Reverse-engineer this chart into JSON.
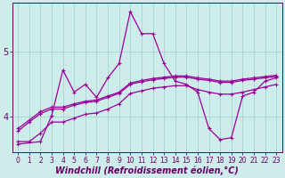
{
  "xlabel": "Windchill (Refroidissement éolien,°C)",
  "bg_color": "#ceecea",
  "line_color": "#990099",
  "grid_color": "#aad8d5",
  "axis_color": "#660066",
  "text_color": "#660066",
  "xlim": [
    -0.5,
    23.5
  ],
  "ylim": [
    3.45,
    5.75
  ],
  "yticks": [
    4,
    5
  ],
  "xticks": [
    0,
    1,
    2,
    3,
    4,
    5,
    6,
    7,
    8,
    9,
    10,
    11,
    12,
    13,
    14,
    15,
    16,
    17,
    18,
    19,
    20,
    21,
    22,
    23
  ],
  "line1_x": [
    0,
    1,
    2,
    3,
    4,
    5,
    6,
    7,
    8,
    9,
    10,
    11,
    12,
    13,
    14,
    15,
    16,
    17,
    18,
    19,
    20,
    21,
    22,
    23
  ],
  "line1_y": [
    3.78,
    3.92,
    4.05,
    4.12,
    4.12,
    4.18,
    4.22,
    4.24,
    4.3,
    4.36,
    4.5,
    4.54,
    4.57,
    4.59,
    4.61,
    4.61,
    4.58,
    4.56,
    4.53,
    4.53,
    4.56,
    4.58,
    4.6,
    4.62
  ],
  "line2_x": [
    0,
    1,
    2,
    3,
    4,
    5,
    6,
    7,
    8,
    9,
    10,
    11,
    12,
    13,
    14,
    15,
    16,
    17,
    18,
    19,
    20,
    21,
    22,
    23
  ],
  "line2_y": [
    3.82,
    3.95,
    4.08,
    4.15,
    4.15,
    4.2,
    4.24,
    4.26,
    4.32,
    4.38,
    4.52,
    4.56,
    4.59,
    4.61,
    4.63,
    4.63,
    4.6,
    4.58,
    4.55,
    4.55,
    4.58,
    4.6,
    4.62,
    4.64
  ],
  "line3_x": [
    0,
    1,
    2,
    3,
    4,
    5,
    6,
    7,
    8,
    9,
    10,
    11,
    12,
    13,
    14,
    15,
    16,
    17,
    18,
    19,
    20,
    21,
    22,
    23
  ],
  "line3_y": [
    3.62,
    3.62,
    3.75,
    3.92,
    3.92,
    3.98,
    4.04,
    4.06,
    4.12,
    4.2,
    4.36,
    4.4,
    4.44,
    4.46,
    4.48,
    4.48,
    4.42,
    4.38,
    4.35,
    4.35,
    4.38,
    4.42,
    4.46,
    4.5
  ],
  "line4_x": [
    0,
    2,
    3,
    4,
    5,
    6,
    7,
    8,
    9,
    10,
    11,
    12,
    13,
    14,
    15,
    16,
    17,
    18,
    19,
    20,
    21,
    22,
    23
  ],
  "line4_y": [
    3.58,
    3.62,
    4.02,
    4.72,
    4.38,
    4.5,
    4.3,
    4.6,
    4.82,
    5.62,
    5.28,
    5.28,
    4.82,
    4.55,
    4.5,
    4.38,
    3.82,
    3.65,
    3.68,
    4.32,
    4.38,
    4.55,
    4.6
  ],
  "marker_size": 3.0,
  "linewidth": 0.9,
  "tick_fontsize": 5.5,
  "label_fontsize": 7.0
}
